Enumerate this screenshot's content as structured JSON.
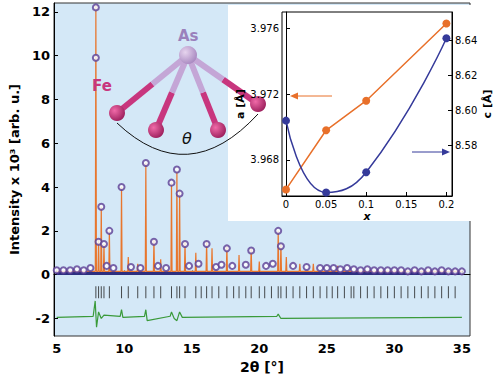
{
  "chart_data": [
    {
      "type": "scatter",
      "x_label": "2θ [°]",
      "y_label": "Intensity x 10³ [arb. u.]",
      "xlim": [
        4.8,
        35.6
      ],
      "xticks": [
        5,
        10,
        15,
        20,
        25,
        30,
        35
      ],
      "ylim": [
        -2.8,
        12.4
      ],
      "yticks": [
        -2,
        0,
        2,
        4,
        6,
        8,
        10,
        12
      ],
      "grid": false,
      "series": [
        {
          "type": "line",
          "color": "#2d2f80",
          "marker": "none",
          "line_style": "thick",
          "x": [
            5,
            35
          ],
          "values": [
            0.05,
            0.05
          ]
        },
        {
          "type": "scatter",
          "color": "#5b3f95",
          "marker": "circle",
          "x": [
            7.9,
            7.9,
            8.1,
            8.3,
            8.5,
            8.9,
            9.8,
            11.6,
            12.2,
            13.5,
            13.9,
            14.1,
            14.5,
            16.1,
            17.6,
            19.4,
            21.4,
            21.6,
            5,
            5.5,
            6,
            6.5,
            7,
            7.5,
            8.7,
            9.2,
            10.5,
            11.2,
            12.5,
            13.1,
            14.8,
            15.5,
            16.8,
            17.2,
            18.0,
            19.0,
            20.5,
            21.0,
            22.5,
            23.5,
            24.5,
            25.0,
            25.5,
            26.0,
            26.5,
            27.0,
            27.5,
            28.0,
            28.5,
            29.0,
            29.5,
            30.0,
            30.5,
            31.0,
            31.5,
            32.0,
            32.5,
            33.0,
            33.5,
            34.0,
            34.5,
            35.0
          ],
          "values": [
            12.2,
            9.9,
            1.5,
            3.1,
            1.4,
            2.0,
            4.0,
            5.1,
            1.5,
            4.2,
            4.8,
            3.7,
            1.4,
            1.4,
            1.2,
            1.1,
            2.0,
            1.3,
            0.2,
            0.2,
            0.2,
            0.25,
            0.2,
            0.3,
            0.4,
            0.3,
            0.35,
            0.3,
            0.4,
            0.3,
            0.4,
            0.5,
            0.35,
            0.45,
            0.4,
            0.45,
            0.4,
            0.5,
            0.4,
            0.35,
            0.3,
            0.3,
            0.3,
            0.25,
            0.3,
            0.25,
            0.2,
            0.25,
            0.2,
            0.2,
            0.2,
            0.2,
            0.2,
            0.15,
            0.2,
            0.15,
            0.2,
            0.15,
            0.2,
            0.15,
            0.15,
            0.15
          ]
        },
        {
          "type": "line",
          "color": "#e8762d",
          "marker": "none",
          "line_style": "solid",
          "x": [
            5,
            7.86,
            7.9,
            7.94,
            8.06,
            8.1,
            8.14,
            8.26,
            8.3,
            8.34,
            8.46,
            8.5,
            8.54,
            8.86,
            8.9,
            8.94,
            9.76,
            9.8,
            9.84,
            10.26,
            10.3,
            10.34,
            10.96,
            11.0,
            11.04,
            11.56,
            11.6,
            11.64,
            12.16,
            12.2,
            12.24,
            12.66,
            12.7,
            12.74,
            13.46,
            13.5,
            13.54,
            13.86,
            13.9,
            13.94,
            14.06,
            14.1,
            14.14,
            14.46,
            14.5,
            14.54,
            15.26,
            15.3,
            15.34,
            16.06,
            16.1,
            16.14,
            16.46,
            16.5,
            16.54,
            17.56,
            17.6,
            17.64,
            18.46,
            18.5,
            18.54,
            19.36,
            19.4,
            19.44,
            19.96,
            20.0,
            20.04,
            21.36,
            21.4,
            21.44,
            21.56,
            21.6,
            21.64,
            21.96,
            22.0,
            22.04,
            22.96,
            23.0,
            23.04,
            23.96,
            24.0,
            24.04,
            25.76,
            25.8,
            25.84,
            35
          ],
          "values": [
            0.15,
            0.15,
            12.3,
            0.15,
            0.15,
            1.6,
            0.15,
            0.15,
            3.1,
            0.15,
            0.15,
            1.4,
            0.15,
            0.15,
            2.0,
            0.15,
            0.15,
            4.0,
            0.15,
            0.15,
            0.8,
            0.15,
            0.15,
            0.5,
            0.15,
            0.15,
            5.1,
            0.15,
            0.15,
            1.6,
            0.15,
            0.15,
            0.7,
            0.15,
            0.15,
            4.2,
            0.15,
            0.15,
            4.7,
            0.15,
            0.15,
            3.8,
            0.15,
            0.15,
            1.5,
            0.15,
            0.15,
            1.0,
            0.15,
            0.15,
            1.5,
            0.15,
            0.15,
            1.2,
            0.15,
            0.15,
            1.3,
            0.15,
            0.15,
            0.9,
            0.15,
            0.15,
            1.2,
            0.15,
            0.15,
            0.6,
            0.15,
            0.15,
            2.0,
            0.15,
            0.15,
            1.4,
            0.15,
            0.15,
            0.8,
            0.15,
            0.15,
            0.5,
            0.15,
            0.15,
            0.5,
            0.15,
            0.15,
            0.4,
            0.15,
            0.15
          ]
        },
        {
          "type": "scatter",
          "color": "#222222",
          "marker": "vline",
          "x": [
            7.9,
            8.1,
            8.3,
            8.5,
            8.9,
            9.8,
            10.3,
            11.0,
            11.6,
            12.2,
            12.7,
            13.5,
            13.9,
            14.1,
            14.5,
            15.3,
            15.7,
            16.1,
            16.5,
            17.0,
            17.6,
            18.1,
            18.5,
            19.0,
            19.4,
            20.0,
            20.4,
            20.9,
            21.4,
            21.6,
            22.0,
            22.5,
            23.0,
            23.5,
            24.0,
            24.5,
            25.0,
            25.4,
            25.8,
            26.3,
            26.8,
            27.0,
            27.5,
            28.0,
            28.5,
            29.0,
            29.5,
            30.0,
            30.5,
            31.0,
            31.5,
            32.0,
            32.5,
            33.0,
            33.5,
            34.0,
            34.5
          ],
          "values": [
            -0.8,
            -0.8,
            -0.8,
            -0.8,
            -0.8,
            -0.8,
            -0.8,
            -0.8,
            -0.8,
            -0.8,
            -0.8,
            -0.8,
            -0.8,
            -0.8,
            -0.8,
            -0.8,
            -0.8,
            -0.8,
            -0.8,
            -0.8,
            -0.8,
            -0.8,
            -0.8,
            -0.8,
            -0.8,
            -0.8,
            -0.8,
            -0.8,
            -0.8,
            -0.8,
            -0.8,
            -0.8,
            -0.8,
            -0.8,
            -0.8,
            -0.8,
            -0.8,
            -0.8,
            -0.8,
            -0.8,
            -0.8,
            -0.8,
            -0.8,
            -0.8,
            -0.8,
            -0.8,
            -0.8,
            -0.8,
            -0.8,
            -0.8,
            -0.8,
            -0.8,
            -0.8,
            -0.8,
            -0.8,
            -0.8,
            -0.8
          ]
        },
        {
          "type": "line",
          "color": "#3a9a3a",
          "marker": "none",
          "line_style": "solid",
          "x": [
            5,
            7.7,
            7.85,
            7.95,
            8.1,
            8.3,
            8.5,
            9.7,
            9.8,
            9.9,
            11.5,
            11.6,
            11.7,
            13.4,
            13.5,
            13.7,
            13.9,
            14.1,
            14.3,
            21.3,
            21.4,
            21.6,
            35
          ],
          "values": [
            -1.95,
            -1.9,
            -1.2,
            -2.4,
            -1.7,
            -2.0,
            -1.85,
            -1.9,
            -1.6,
            -1.95,
            -1.9,
            -1.6,
            -2.1,
            -1.9,
            -1.7,
            -2.0,
            -2.1,
            -1.7,
            -1.95,
            -1.9,
            -1.8,
            -2.0,
            -1.95
          ]
        }
      ]
    },
    {
      "type": "line",
      "x_label": "x",
      "y_label": "a [Å]",
      "y2_label": "c [Å]",
      "xlim": [
        -0.005,
        0.207
      ],
      "xticks": [
        0,
        0.05,
        0.1,
        0.15,
        0.2
      ],
      "ylim": [
        3.9658,
        3.977
      ],
      "yticks": [
        3.968,
        3.972,
        3.976
      ],
      "y2lim": [
        8.551,
        8.656
      ],
      "y2ticks": [
        {
          "value": 8.58,
          "label": "8.58"
        },
        {
          "value": 8.6,
          "label": "8.60"
        },
        {
          "value": 8.62,
          "label": "8.62"
        },
        {
          "value": 8.64,
          "label": "8.64"
        }
      ],
      "grid": false,
      "series": [
        {
          "color": "#e8702a",
          "marker": "circle",
          "line_style": "solid",
          "axis": "y",
          "x": [
            0,
            0.05,
            0.1,
            0.2
          ],
          "values": [
            3.9662,
            3.9698,
            3.9716,
            3.9763
          ]
        },
        {
          "color": "#353a9a",
          "marker": "circle",
          "line_style": "smooth",
          "axis": "y2",
          "x": [
            0,
            0.05,
            0.1,
            0.2
          ],
          "values": [
            8.594,
            8.553,
            8.5646,
            8.641
          ]
        }
      ]
    }
  ],
  "diagram": {
    "center_atom": "As",
    "outer_atom": "Fe",
    "angle": "θ"
  }
}
